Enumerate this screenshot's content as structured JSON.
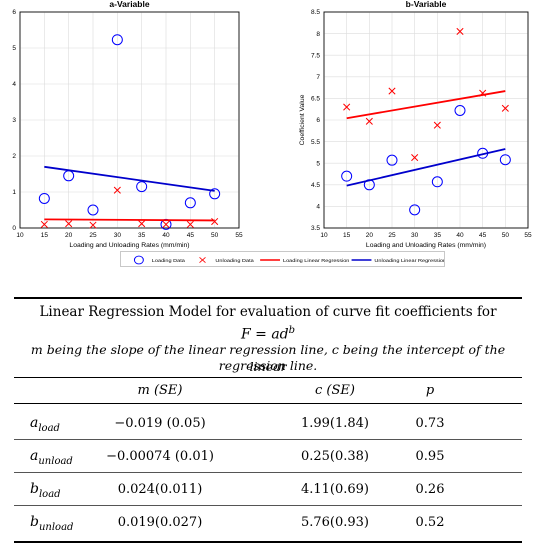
{
  "chart_data": [
    {
      "type": "scatter",
      "title": "a-Variable",
      "xlabel": "Loading and Unloading Rates (mm/min)",
      "ylabel": "Coefficient Value",
      "xlim": [
        10,
        55
      ],
      "ylim": [
        0,
        6
      ],
      "xticks": [
        "10",
        "15",
        "20",
        "25",
        "30",
        "35",
        "40",
        "45",
        "50",
        "55"
      ],
      "yticks": [
        "0",
        "1",
        "2",
        "3",
        "4",
        "5",
        "6"
      ],
      "grid": true,
      "series": [
        {
          "name": "Loading Data",
          "marker": "circle",
          "color": "#0000ff",
          "x": [
            15,
            20,
            25,
            30,
            35,
            40,
            45,
            50
          ],
          "y": [
            0.82,
            1.45,
            0.5,
            5.23,
            1.15,
            0.1,
            0.7,
            0.95
          ]
        },
        {
          "name": "Unloading Data",
          "marker": "x",
          "color": "#ff0000",
          "x": [
            15,
            20,
            25,
            30,
            35,
            40,
            45,
            50
          ],
          "y": [
            0.1,
            0.12,
            0.08,
            1.05,
            0.12,
            0.1,
            0.1,
            0.18
          ]
        },
        {
          "name": "Loading Linear Regression",
          "type": "line",
          "color": "#ff0000",
          "x": [
            15,
            50
          ],
          "y": [
            0.24,
            0.21
          ]
        },
        {
          "name": "Unloading Linear Regression",
          "type": "line",
          "color": "#0000cc",
          "x": [
            15,
            50
          ],
          "y": [
            1.7,
            1.03
          ]
        }
      ]
    },
    {
      "type": "scatter",
      "title": "b-Variable",
      "xlabel": "Loading and Unloading Rates (mm/min)",
      "ylabel": "Coefficient Value",
      "xlim": [
        10,
        55
      ],
      "ylim": [
        3.5,
        8.5
      ],
      "xticks": [
        "10",
        "15",
        "20",
        "25",
        "30",
        "35",
        "40",
        "45",
        "50",
        "55"
      ],
      "yticks": [
        "3.5",
        "4",
        "4.5",
        "5",
        "5.5",
        "6",
        "6.5",
        "7",
        "7.5",
        "8",
        "8.5"
      ],
      "grid": true,
      "series": [
        {
          "name": "Loading Data",
          "marker": "circle",
          "color": "#0000ff",
          "x": [
            15,
            20,
            25,
            30,
            35,
            40,
            45,
            50
          ],
          "y": [
            4.7,
            4.5,
            5.07,
            3.92,
            4.57,
            6.22,
            5.23,
            5.08
          ]
        },
        {
          "name": "Unloading Data",
          "marker": "x",
          "color": "#ff0000",
          "x": [
            15,
            20,
            25,
            30,
            35,
            40,
            45,
            50
          ],
          "y": [
            6.3,
            5.97,
            6.67,
            5.13,
            5.88,
            8.05,
            6.62,
            6.27
          ]
        },
        {
          "name": "Loading Linear Regression",
          "type": "line",
          "color": "#ff0000",
          "x": [
            15,
            50
          ],
          "y": [
            6.04,
            6.67
          ]
        },
        {
          "name": "Unloading Linear Regression",
          "type": "line",
          "color": "#0000cc",
          "x": [
            15,
            50
          ],
          "y": [
            4.48,
            5.33
          ]
        }
      ]
    }
  ],
  "legend": {
    "items": [
      "Loading Data",
      "Unloading Data",
      "Loading Linear Regression",
      "Unloading Linear Regression"
    ]
  },
  "table": {
    "title_line1": "Linear Regression Model for evaluation of curve fit coefficients for",
    "equation_lhs": "F = ad",
    "equation_exp": "b",
    "note_line1": "m being the slope of the linear regression line, c being the intercept of the linear",
    "note_line2": "regression line.",
    "headers": [
      "m (SE)",
      "c (SE)",
      "p"
    ],
    "rows": [
      {
        "sym": "a",
        "sub": "load",
        "m": "−0.019 (0.05)",
        "c": "1.99(1.84)",
        "p": "0.73"
      },
      {
        "sym": "a",
        "sub": "unload",
        "m": "−0.00074 (0.01)",
        "c": "0.25(0.38)",
        "p": "0.95"
      },
      {
        "sym": "b",
        "sub": "load",
        "m": "0.024(0.011)",
        "c": "4.11(0.69)",
        "p": "0.26"
      },
      {
        "sym": "b",
        "sub": "unload",
        "m": "0.019(0.027)",
        "c": "5.76(0.93)",
        "p": "0.52"
      }
    ]
  }
}
